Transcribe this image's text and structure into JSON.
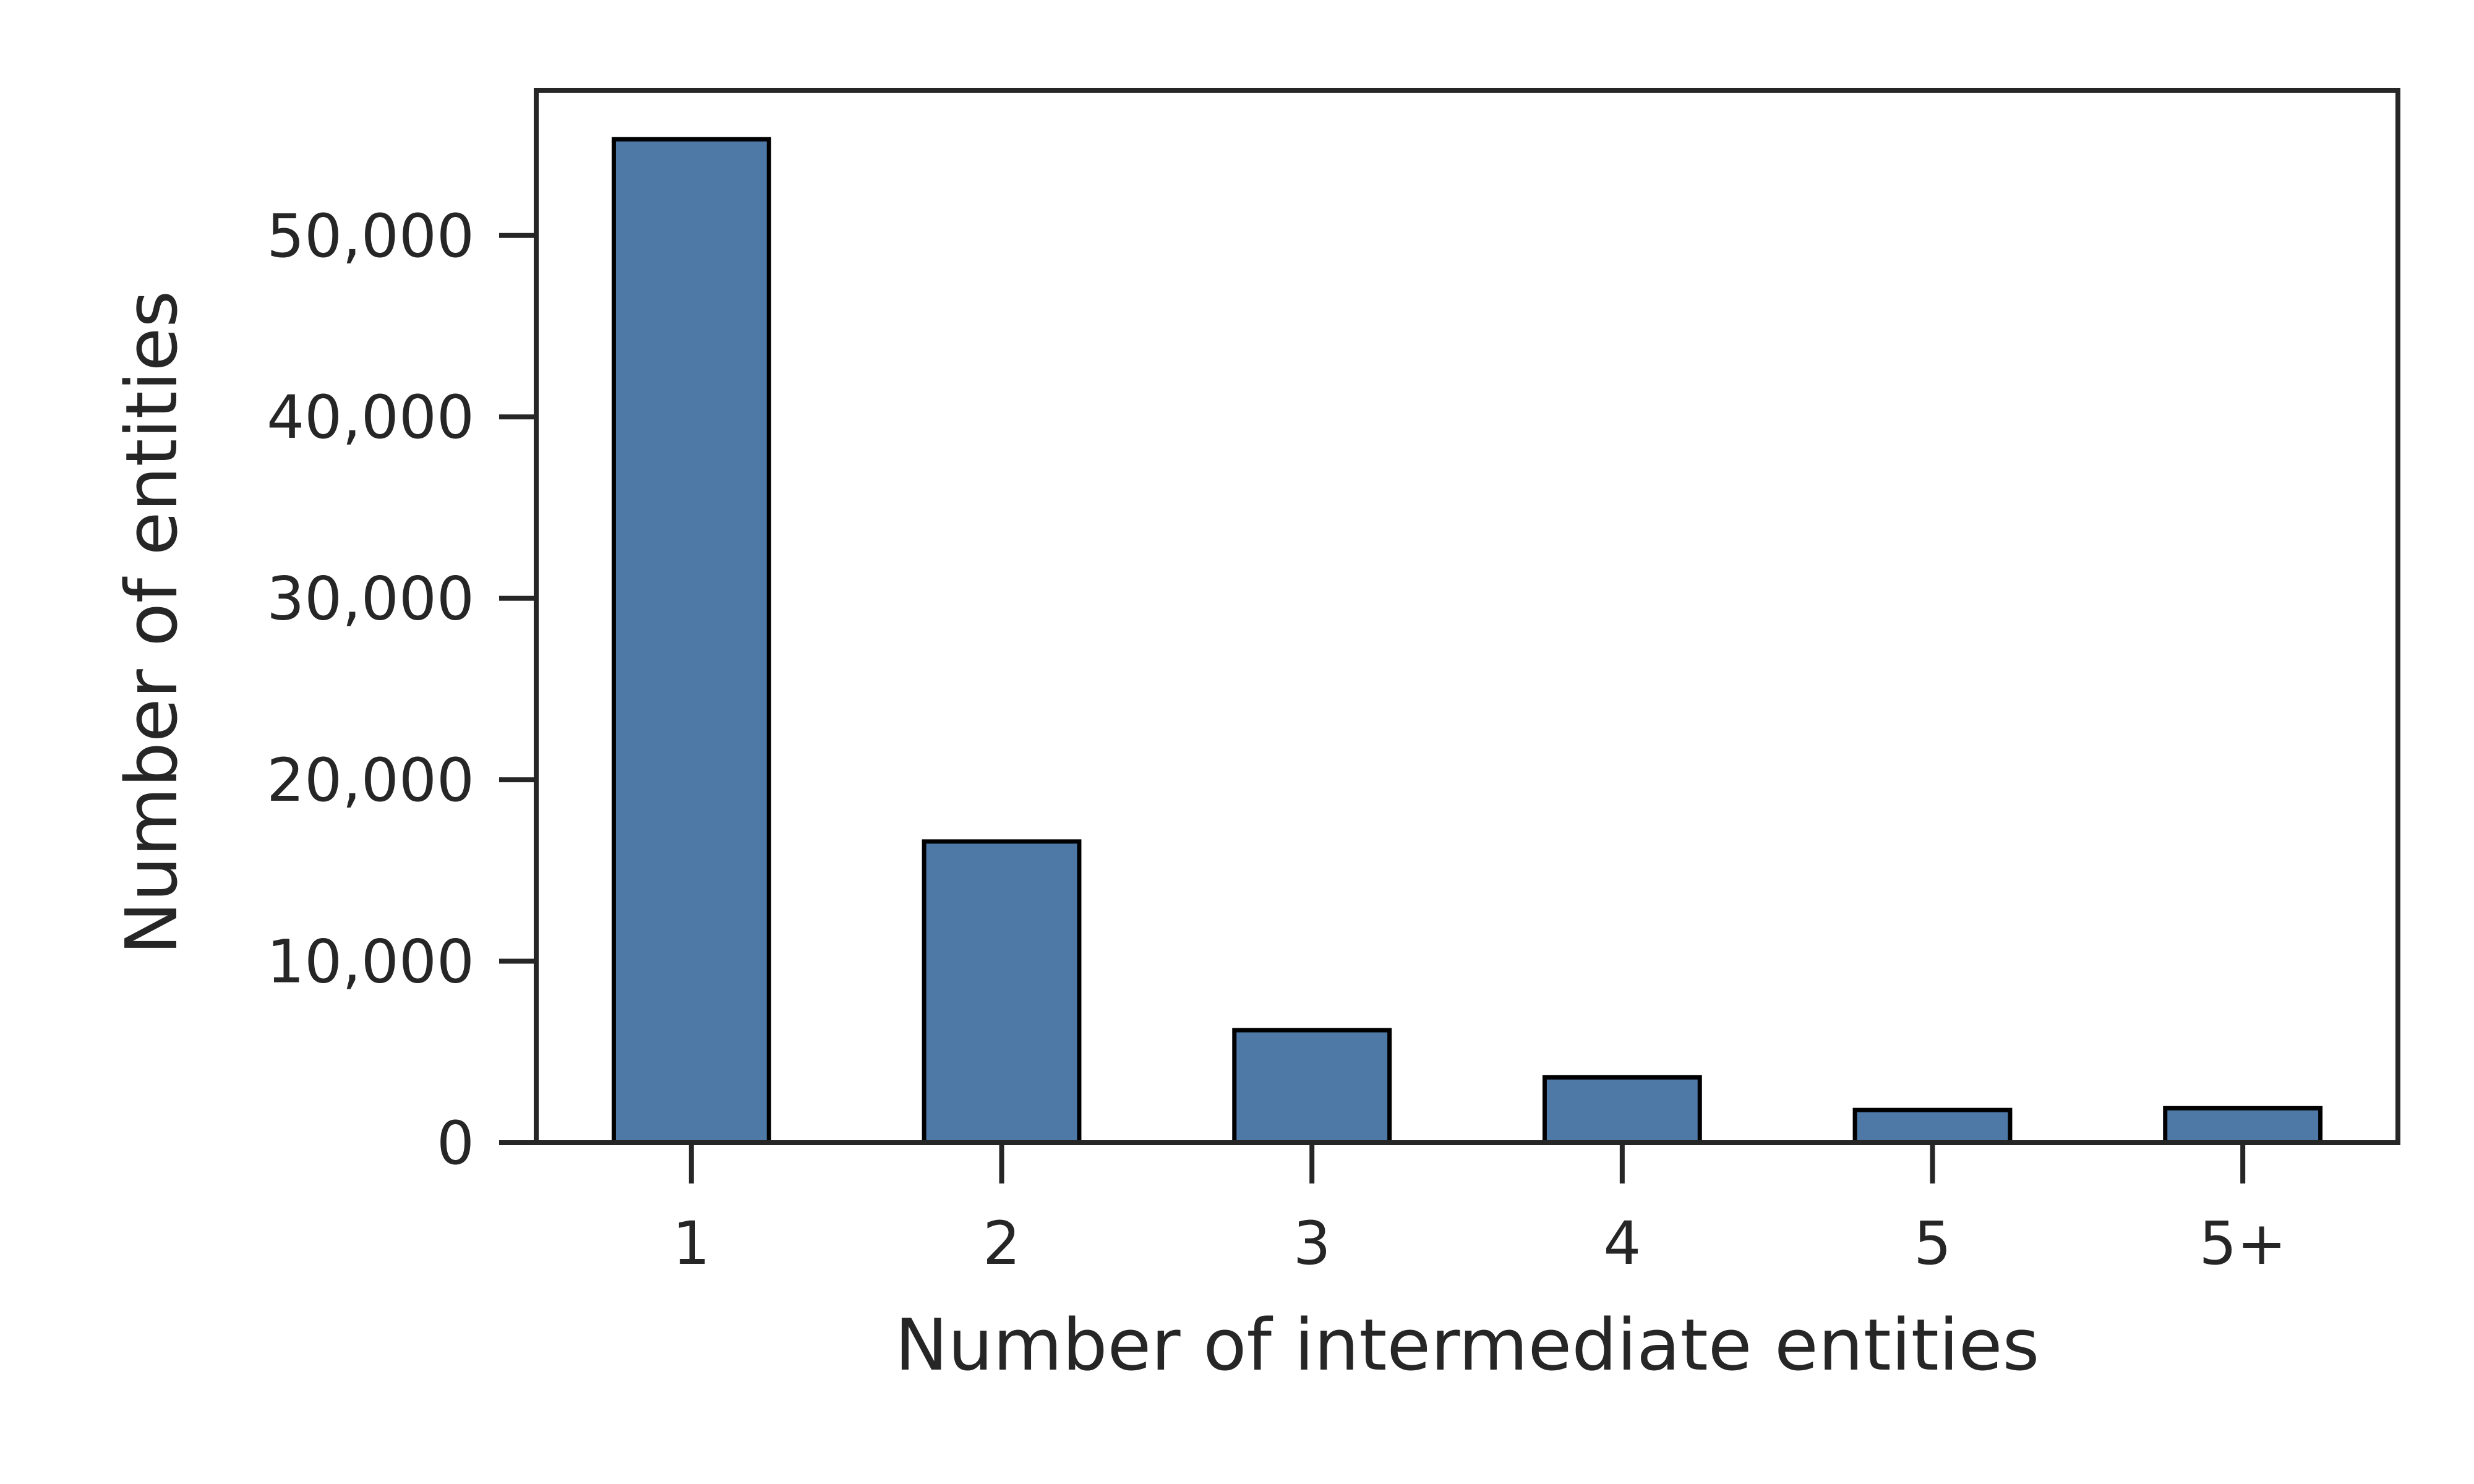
{
  "chart_data": {
    "type": "bar",
    "title": "",
    "xlabel": "Number of intermediate entities",
    "ylabel": "Number of entities",
    "categories": [
      "1",
      "2",
      "3",
      "4",
      "5",
      "5+"
    ],
    "values": [
      55300,
      16600,
      6200,
      3600,
      1800,
      1900
    ],
    "ylim": [
      0,
      58000
    ],
    "yticks": [
      0,
      10000,
      20000,
      30000,
      40000,
      50000
    ],
    "ytick_labels": [
      "0",
      "10,000",
      "20,000",
      "30,000",
      "40,000",
      "50,000"
    ],
    "grid": false,
    "legend": "none",
    "colors": {
      "bar_fill": "#4e79a7",
      "bar_edge": "#000000",
      "axis": "#262626",
      "text": "#262626"
    }
  }
}
